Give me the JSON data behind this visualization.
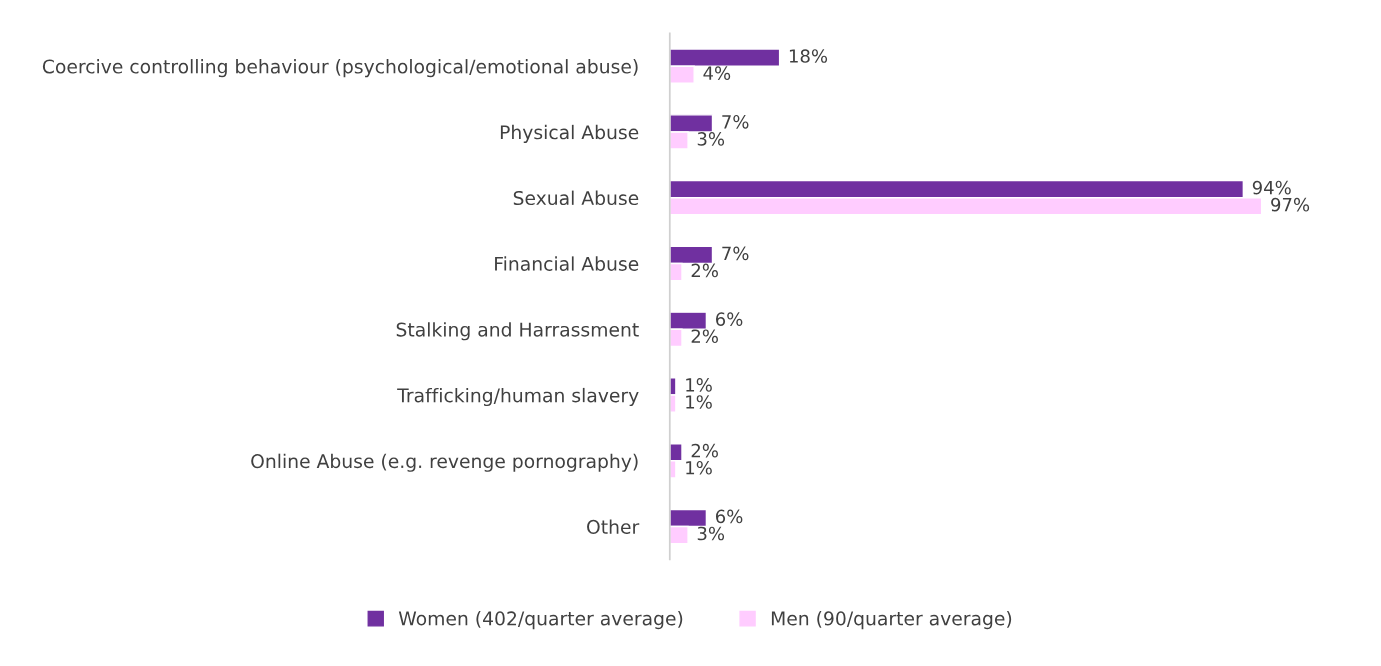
{
  "chart_data": {
    "type": "bar",
    "orientation": "horizontal",
    "categories": [
      "Coercive controlling behaviour (psychological/emotional abuse)",
      "Physical Abuse",
      "Sexual Abuse",
      "Financial Abuse",
      "Stalking and Harrassment",
      "Trafficking/human slavery",
      "Online Abuse (e.g. revenge pornography)",
      "Other"
    ],
    "series": [
      {
        "name": "Women (402/quarter average)",
        "color": "#7030a0",
        "values": [
          18,
          7,
          94,
          7,
          6,
          1,
          2,
          6
        ],
        "value_labels": [
          "18%",
          "7%",
          "94%",
          "7%",
          "6%",
          "1%",
          "2%",
          "6%"
        ]
      },
      {
        "name": "Men (90/quarter average)",
        "color": "#ffccff",
        "values": [
          4,
          3,
          97,
          2,
          2,
          1,
          1,
          3
        ],
        "value_labels": [
          "4%",
          "3%",
          "97%",
          "2%",
          "2%",
          "1%",
          "1%",
          "3%"
        ]
      }
    ],
    "legend": "bottom",
    "grid": false
  }
}
